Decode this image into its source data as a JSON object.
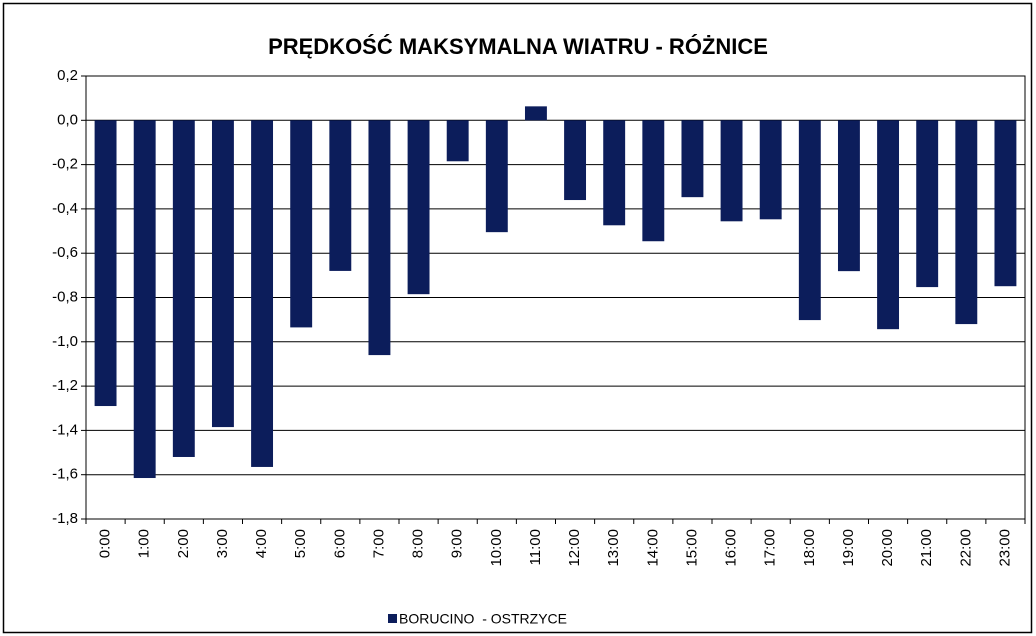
{
  "chart_data": {
    "type": "bar",
    "title": "PRĘDKOŚĆ MAKSYMALNA WIATRU - RÓŻNICE",
    "categories": [
      "0:00",
      "1:00",
      "2:00",
      "3:00",
      "4:00",
      "5:00",
      "6:00",
      "7:00",
      "8:00",
      "9:00",
      "10:00",
      "11:00",
      "12:00",
      "13:00",
      "14:00",
      "15:00",
      "16:00",
      "17:00",
      "18:00",
      "19:00",
      "20:00",
      "21:00",
      "22:00",
      "23:00"
    ],
    "series": [
      {
        "name": "BORUCINO  - OSTRZYCE",
        "color": "#0c1d5b",
        "values": [
          -1.29,
          -1.615,
          -1.52,
          -1.385,
          -1.565,
          -0.935,
          -0.68,
          -1.06,
          -0.785,
          -0.185,
          -0.505,
          0.063,
          -0.36,
          -0.474,
          -0.546,
          -0.347,
          -0.456,
          -0.447,
          -0.902,
          -0.681,
          -0.943,
          -0.753,
          -0.92,
          -0.749
        ]
      }
    ],
    "ylim": [
      -1.8,
      0.2
    ],
    "yticks": [
      {
        "value": 0.2,
        "label": "0,2"
      },
      {
        "value": 0,
        "label": "0,0"
      },
      {
        "value": -0.2,
        "label": "-0,2"
      },
      {
        "value": -0.4,
        "label": "-0,4"
      },
      {
        "value": -0.6,
        "label": "-0,6"
      },
      {
        "value": -0.8,
        "label": "-0,8"
      },
      {
        "value": -1,
        "label": "-1,0"
      },
      {
        "value": -1.2,
        "label": "-1,2"
      },
      {
        "value": -1.4,
        "label": "-1,4"
      },
      {
        "value": -1.6,
        "label": "-1,6"
      },
      {
        "value": -1.8,
        "label": "-1,8"
      }
    ],
    "grid": true,
    "legend": "bottom"
  }
}
